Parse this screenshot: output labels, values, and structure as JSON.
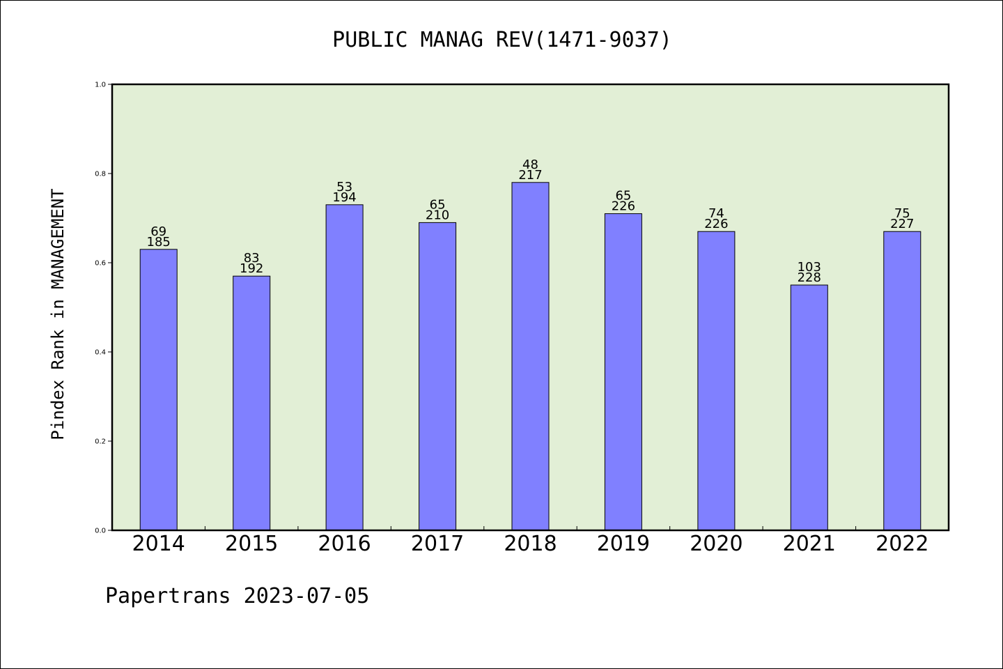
{
  "chart_data": {
    "type": "bar",
    "title": "PUBLIC MANAG REV(1471-9037)",
    "xlabel": "",
    "ylabel": "Pindex Rank in MANAGEMENT",
    "categories": [
      "2014",
      "2015",
      "2016",
      "2017",
      "2018",
      "2019",
      "2020",
      "2021",
      "2022"
    ],
    "values": [
      0.63,
      0.57,
      0.73,
      0.69,
      0.78,
      0.71,
      0.67,
      0.55,
      0.67
    ],
    "label_top": [
      "69",
      "83",
      "53",
      "65",
      "48",
      "65",
      "74",
      "103",
      "75"
    ],
    "label_bottom": [
      "185",
      "192",
      "194",
      "210",
      "217",
      "226",
      "226",
      "228",
      "227"
    ],
    "ylim": [
      0,
      1.0
    ],
    "yticks": [
      "0.0",
      "0.2",
      "0.4",
      "0.6",
      "0.8",
      "1.0"
    ],
    "grid": false,
    "footer": "Papertrans 2023-07-05",
    "colors": {
      "plot_background": "#e2efd6",
      "bar_fill": "#8080ff",
      "bar_edge": "#000000"
    }
  }
}
